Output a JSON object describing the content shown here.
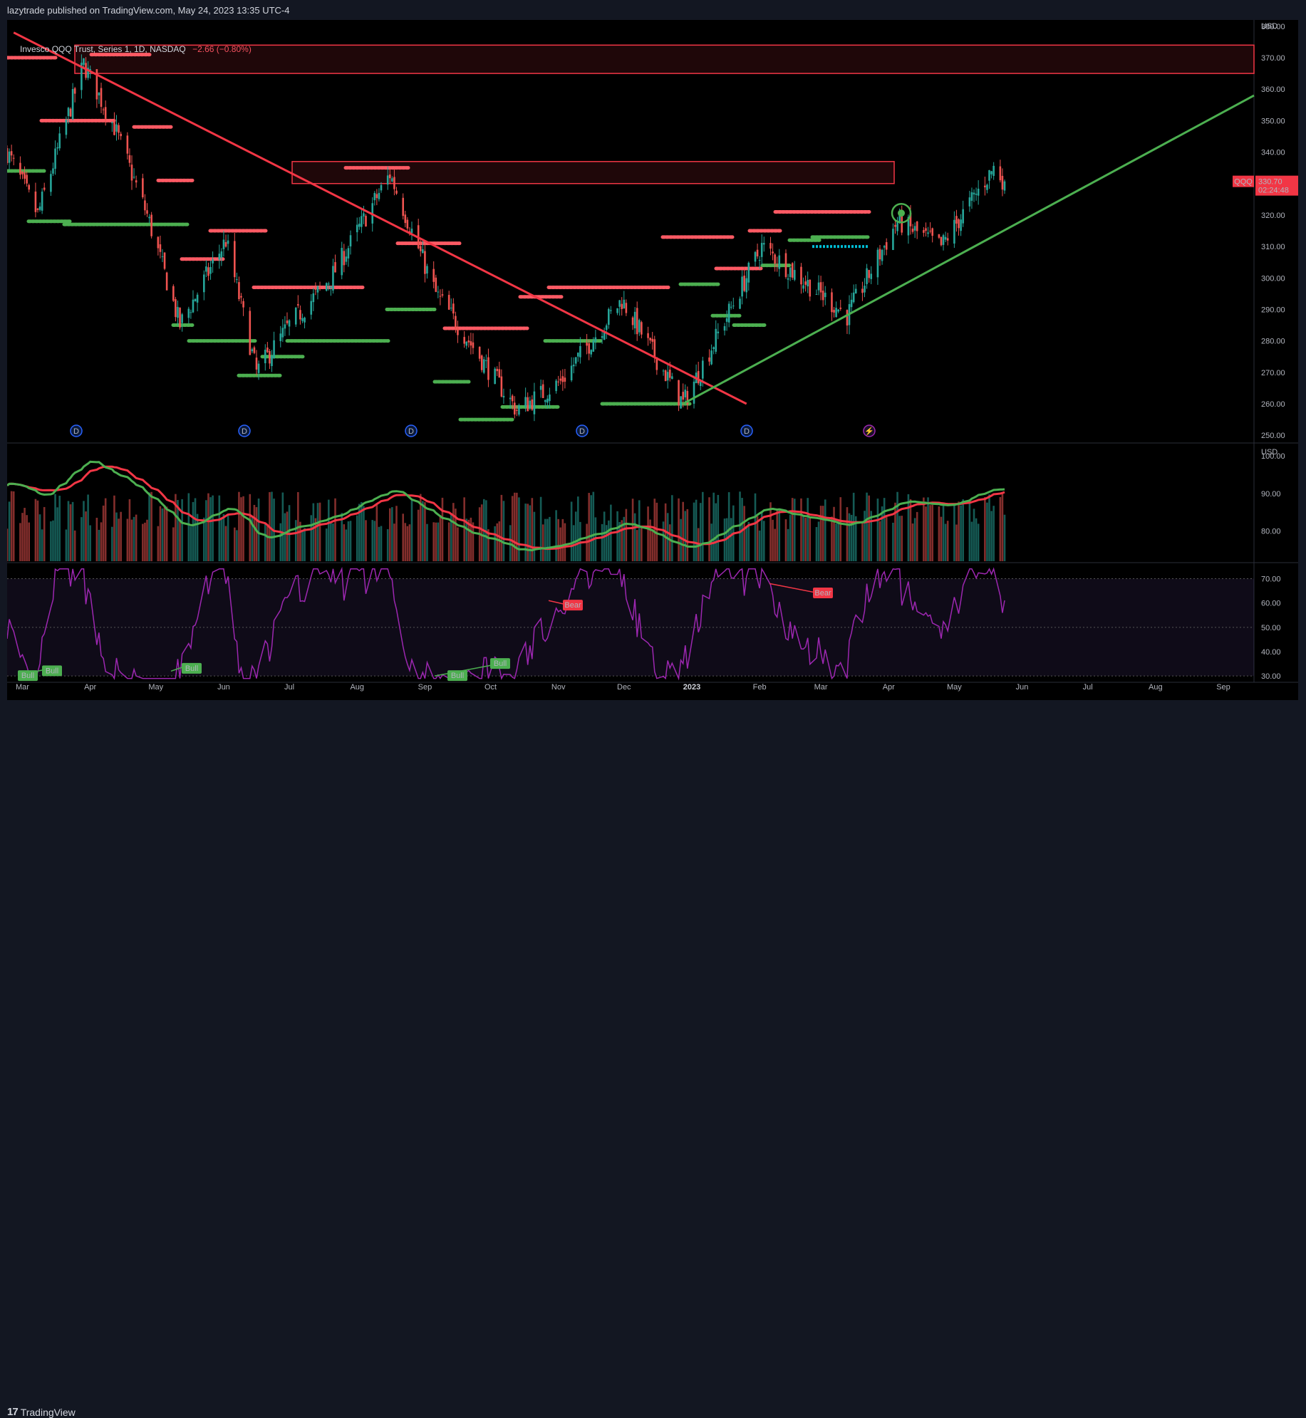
{
  "header": {
    "publisher": "lazytrade published on TradingView.com, May 24, 2023 13:35 UTC-4"
  },
  "legend": {
    "symbol": "Invesco QQQ Trust, Series 1, 1D, NASDAQ",
    "change": "−2.66 (−0.80%)"
  },
  "price_panel": {
    "currency": "USD",
    "y_ticks": [
      "380.00",
      "370.00",
      "360.00",
      "350.00",
      "340.00",
      "330.00",
      "320.00",
      "310.00",
      "300.00",
      "290.00",
      "280.00",
      "270.00",
      "260.00",
      "250.00"
    ],
    "ticker_badge": "QQQ",
    "last_price": "330.70",
    "countdown": "02:24:48"
  },
  "volume_panel": {
    "currency": "USD",
    "y_ticks": [
      "100.00",
      "90.00",
      "80.00"
    ]
  },
  "rsi_panel": {
    "y_ticks": [
      "70.00",
      "60.00",
      "50.00",
      "40.00",
      "30.00"
    ],
    "labels": [
      "Bull",
      "Bull",
      "Bull",
      "Bull",
      "Bull",
      "Bear",
      "Bear"
    ]
  },
  "x_axis": {
    "months": [
      "Mar",
      "Apr",
      "May",
      "Jun",
      "Jul",
      "Aug",
      "Sep",
      "Oct",
      "Nov",
      "Dec",
      "2023",
      "Feb",
      "Mar",
      "Apr",
      "May",
      "Jun",
      "Jul",
      "Aug",
      "Sep"
    ]
  },
  "dividend_marker": "D",
  "footer": {
    "brand": "TradingView"
  },
  "colors": {
    "up": "#26a69a",
    "down": "#ef5350",
    "red_line": "#f23645",
    "green_line": "#4caf50",
    "rsi": "#9c27b0",
    "zone_border": "#f23645",
    "cyan_level": "#00bcd4"
  },
  "chart_data": {
    "type": "candlestick",
    "title": "Invesco QQQ Trust, Series 1, 1D, NASDAQ",
    "ylabel": "USD",
    "ylim": [
      248,
      382
    ],
    "x_range": [
      "2022-02-22",
      "2023-09-15"
    ],
    "close_path": [
      {
        "date": "2022-02-22",
        "close": 340
      },
      {
        "date": "2022-03-08",
        "close": 320
      },
      {
        "date": "2022-03-29",
        "close": 368
      },
      {
        "date": "2022-04-12",
        "close": 348
      },
      {
        "date": "2022-04-27",
        "close": 320
      },
      {
        "date": "2022-05-12",
        "close": 285
      },
      {
        "date": "2022-06-02",
        "close": 312
      },
      {
        "date": "2022-06-16",
        "close": 270
      },
      {
        "date": "2022-07-01",
        "close": 285
      },
      {
        "date": "2022-07-20",
        "close": 300
      },
      {
        "date": "2022-08-16",
        "close": 333
      },
      {
        "date": "2022-09-06",
        "close": 295
      },
      {
        "date": "2022-09-13",
        "close": 288
      },
      {
        "date": "2022-10-13",
        "close": 258
      },
      {
        "date": "2022-11-02",
        "close": 267
      },
      {
        "date": "2022-11-30",
        "close": 293
      },
      {
        "date": "2022-12-28",
        "close": 260
      },
      {
        "date": "2023-02-02",
        "close": 310
      },
      {
        "date": "2023-03-13",
        "close": 288
      },
      {
        "date": "2023-04-05",
        "close": 318
      },
      {
        "date": "2023-04-25",
        "close": 310
      },
      {
        "date": "2023-05-19",
        "close": 335
      },
      {
        "date": "2023-05-24",
        "close": 330.7
      }
    ],
    "last_close": 330.7,
    "resistance_zones": [
      [
        365,
        374
      ],
      [
        330,
        337
      ]
    ],
    "trend_lines": [
      {
        "from": {
          "date": "2022-02-25",
          "price": 378
        },
        "to": {
          "date": "2023-01-26",
          "price": 260
        }
      },
      {
        "from": {
          "date": "2022-12-28",
          "price": 260
        },
        "to": {
          "date": "2023-09-15",
          "price": 358
        }
      }
    ],
    "rsi": {
      "ylim": [
        28,
        76
      ],
      "bands": [
        30,
        50,
        70
      ]
    },
    "volume_panel_ylim": [
      72,
      103
    ]
  }
}
